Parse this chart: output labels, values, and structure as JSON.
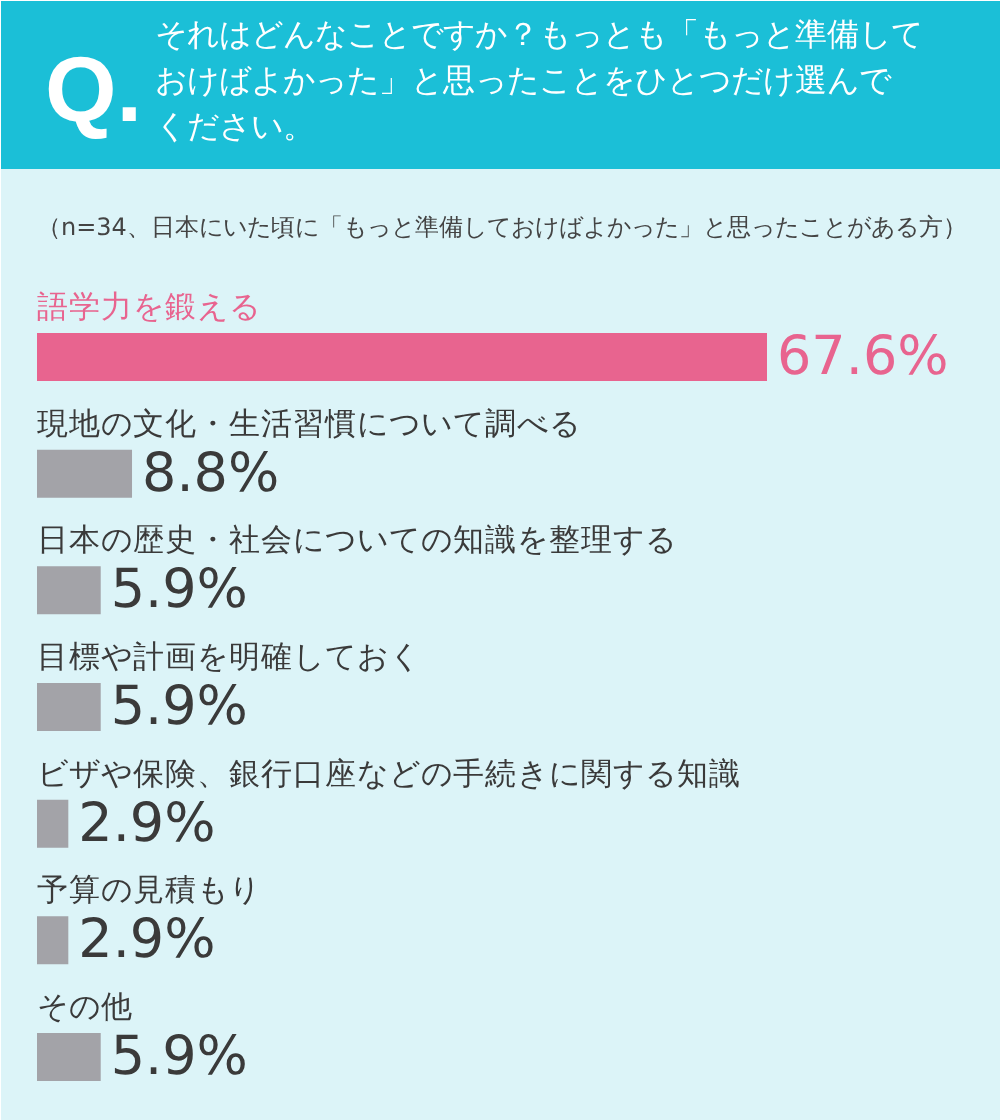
{
  "chart_data": {
    "type": "bar",
    "orientation": "horizontal",
    "title": "それはどんなことですか？もっとも「もっと準備しておけばよかった」と思ったことをひとつだけ選んでください。",
    "subtitle": "（n=34、日本にいた頃に「もっと準備しておけばよかった」と思ったことがある方）",
    "annotations": [
      "Q."
    ],
    "categories": [
      "語学力を鍛える",
      "現地の文化・生活習慣について調べる",
      "日本の歴史・社会についての知識を整理する",
      "目標や計画を明確しておく",
      "ビザや保険、銀行口座などの手続きに関する知識",
      "予算の見積もり",
      "その他"
    ],
    "values": [
      67.6,
      8.8,
      5.9,
      5.9,
      2.9,
      2.9,
      5.9
    ],
    "colors": [
      "#e8648f",
      "#a3a3a8",
      "#a3a3a8",
      "#a3a3a8",
      "#a3a3a8",
      "#a3a3a8",
      "#a3a3a8"
    ],
    "value_labels": [
      "67.6%",
      "8.8%",
      "5.9%",
      "5.9%",
      "2.9%",
      "2.9%",
      "5.9%"
    ],
    "tick_labels": "y"
  }
}
